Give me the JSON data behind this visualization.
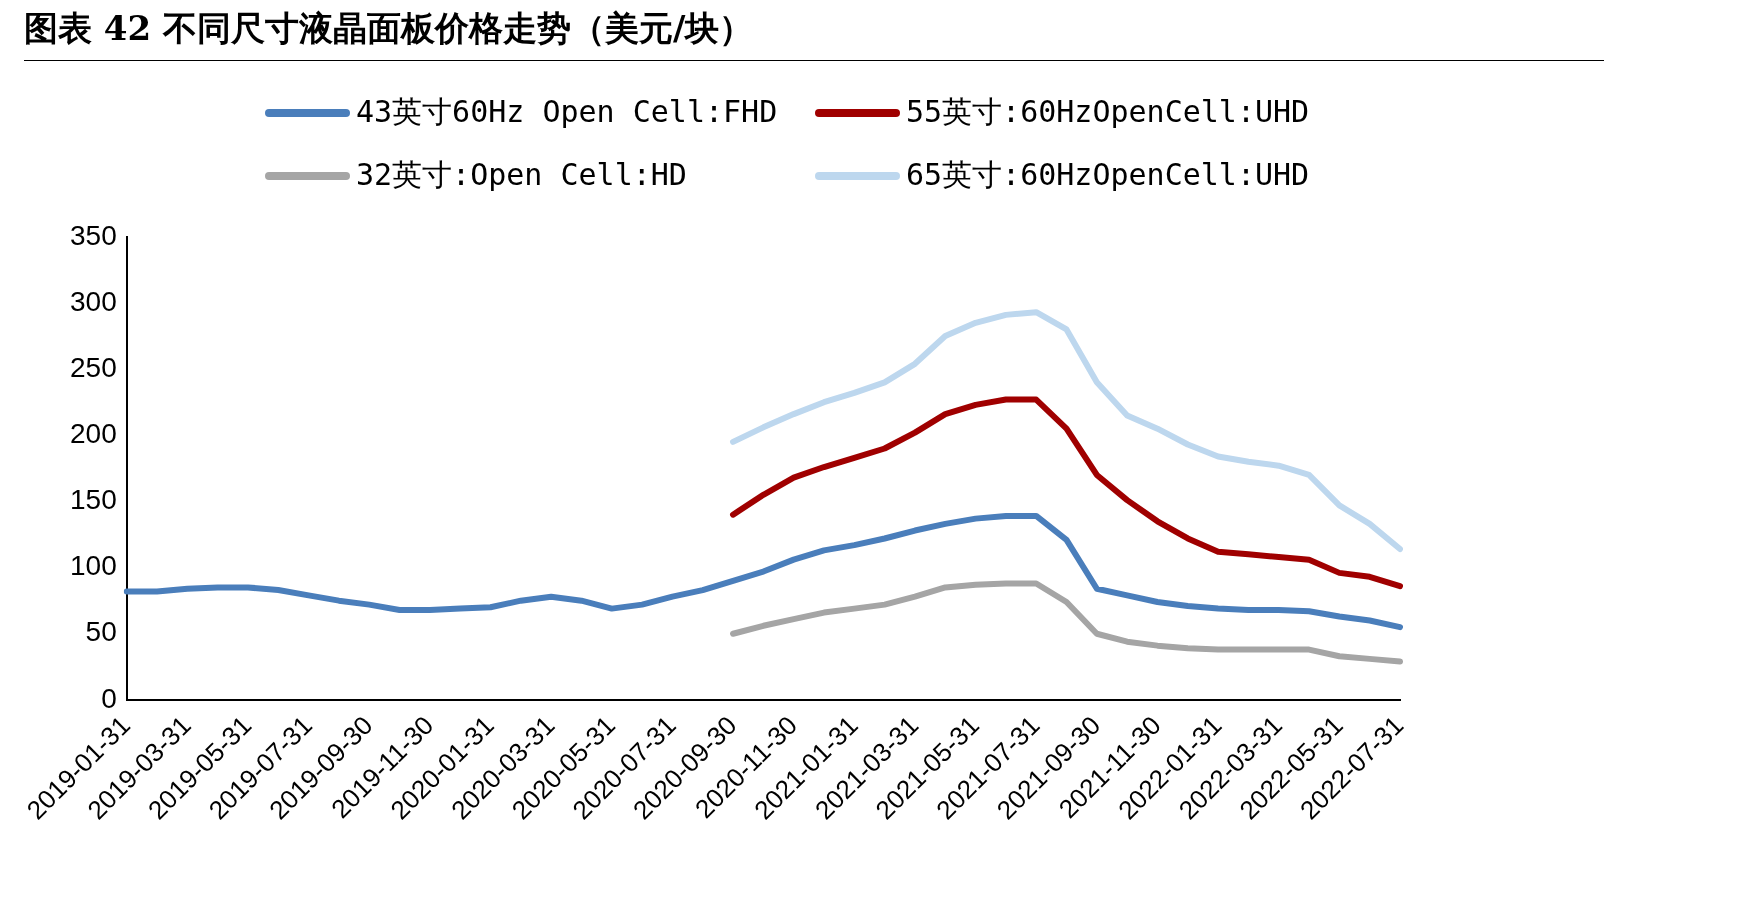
{
  "chart_data": {
    "type": "line",
    "title": "图表 42 不同尺寸液晶面板价格走势（美元/块）",
    "categories": [
      "2019-01-31",
      null,
      "2019-03-31",
      null,
      "2019-05-31",
      null,
      "2019-07-31",
      null,
      "2019-09-30",
      null,
      "2019-11-30",
      null,
      "2020-01-31",
      null,
      "2020-03-31",
      null,
      "2020-05-31",
      null,
      "2020-07-31",
      null,
      "2020-09-30",
      null,
      "2020-11-30",
      null,
      "2021-01-31",
      null,
      "2021-03-31",
      null,
      "2021-05-31",
      null,
      "2021-07-31",
      null,
      "2021-09-30",
      null,
      "2021-11-30",
      null,
      "2022-01-31",
      null,
      "2022-03-31",
      null,
      "2022-05-31",
      null,
      "2022-07-31"
    ],
    "series": [
      {
        "name": "43英寸60Hz Open Cell:FHD",
        "color": "#4a7ebb",
        "values": [
          82,
          82,
          84,
          85,
          85,
          83,
          79,
          75,
          72,
          68,
          68,
          69,
          70,
          75,
          78,
          75,
          69,
          72,
          78,
          83,
          90,
          97,
          106,
          113,
          117,
          122,
          128,
          133,
          137,
          139,
          139,
          121,
          84,
          79,
          74,
          71,
          69,
          68,
          68,
          67,
          63,
          60,
          55
        ]
      },
      {
        "name": "55英寸:60HzOpenCell:UHD",
        "color": "#a00000",
        "values": [
          null,
          null,
          null,
          null,
          null,
          null,
          null,
          null,
          null,
          null,
          null,
          null,
          null,
          null,
          null,
          null,
          null,
          null,
          null,
          null,
          140,
          155,
          168,
          176,
          183,
          190,
          202,
          216,
          223,
          227,
          227,
          205,
          170,
          151,
          135,
          122,
          112,
          110,
          108,
          106,
          96,
          93,
          86
        ]
      },
      {
        "name": "32英寸:Open Cell:HD",
        "color": "#a5a5a5",
        "values": [
          null,
          null,
          null,
          null,
          null,
          null,
          null,
          null,
          null,
          null,
          null,
          null,
          null,
          null,
          null,
          null,
          null,
          null,
          null,
          null,
          50,
          56,
          61,
          66,
          69,
          72,
          78,
          85,
          87,
          88,
          88,
          74,
          50,
          44,
          41,
          39,
          38,
          38,
          38,
          38,
          33,
          31,
          29
        ]
      },
      {
        "name": "65英寸:60HzOpenCell:UHD",
        "color": "#bdd7ee",
        "values": [
          null,
          null,
          null,
          null,
          null,
          null,
          null,
          null,
          null,
          null,
          null,
          null,
          null,
          null,
          null,
          null,
          null,
          null,
          null,
          null,
          195,
          206,
          216,
          225,
          232,
          240,
          254,
          275,
          285,
          291,
          293,
          280,
          240,
          215,
          205,
          193,
          184,
          180,
          177,
          170,
          147,
          133,
          114
        ]
      }
    ],
    "ylim": [
      0,
      350
    ],
    "yticks": [
      0,
      50,
      100,
      150,
      200,
      250,
      300,
      350
    ],
    "grid": false,
    "legend": "top",
    "marker": "none",
    "line_style": "solid"
  }
}
